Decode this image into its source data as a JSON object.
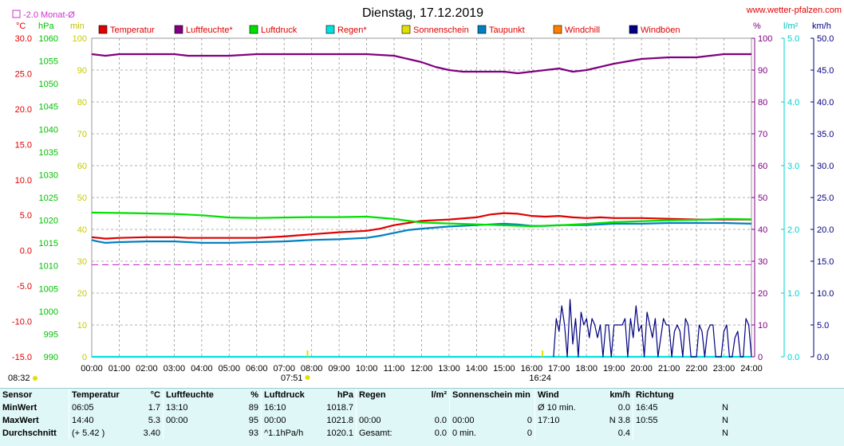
{
  "site": "www.wetter-pfalzen.com",
  "monthly_avg_label": "-2.0 Monat-Ø",
  "sunrise_label": "08:32",
  "sunset_marker_label": "16:24",
  "sun_morning_marker_label": "07:51",
  "colors": {
    "temperature": "#e00000",
    "humidity": "#800080",
    "pressure": "#00e000",
    "rain": "#00e0e0",
    "sunshine": "#e0e000",
    "dewpoint": "#0080c0",
    "windchill": "#ff8000",
    "gusts": "#000080",
    "month_avg": "#cc33cc"
  },
  "chart_data": {
    "type": "line",
    "title": "Dienstag, 17.12.2019",
    "x_ticks": [
      "00:00",
      "01:00",
      "02:00",
      "03:00",
      "04:00",
      "05:00",
      "06:00",
      "07:00",
      "08:00",
      "09:00",
      "10:00",
      "11:00",
      "12:00",
      "13:00",
      "14:00",
      "15:00",
      "16:00",
      "17:00",
      "18:00",
      "19:00",
      "20:00",
      "21:00",
      "22:00",
      "23:00",
      "24:00"
    ],
    "axes": {
      "temp": {
        "unit": "°C",
        "min": -15,
        "max": 30,
        "ticks": [
          "30.0",
          "25.0",
          "20.0",
          "15.0",
          "10.0",
          "5.0",
          "0.0",
          "-5.0",
          "-10.0",
          "-15.0"
        ]
      },
      "pressure": {
        "unit": "hPa",
        "min": 990,
        "max": 1060,
        "ticks": [
          "1060",
          "1055",
          "1050",
          "1045",
          "1040",
          "1035",
          "1030",
          "1025",
          "1020",
          "1015",
          "1010",
          "1005",
          "1000",
          "995",
          "990"
        ]
      },
      "minutes": {
        "unit": "min",
        "min": 0,
        "max": 100,
        "ticks": [
          "100",
          "90",
          "80",
          "70",
          "60",
          "50",
          "40",
          "30",
          "20",
          "10",
          "0"
        ]
      },
      "percent": {
        "unit": "%",
        "min": 0,
        "max": 100,
        "ticks": [
          "100",
          "90",
          "80",
          "70",
          "60",
          "50",
          "40",
          "30",
          "20",
          "10",
          "0"
        ]
      },
      "rain": {
        "unit": "l/m²",
        "min": 0,
        "max": 5,
        "ticks": [
          "5.0",
          "4.0",
          "3.0",
          "2.0",
          "1.0",
          "0.0"
        ]
      },
      "wind": {
        "unit": "km/h",
        "min": 0,
        "max": 50,
        "ticks": [
          "50.0",
          "45.0",
          "40.0",
          "35.0",
          "30.0",
          "25.0",
          "20.0",
          "15.0",
          "10.0",
          "5.0",
          "0.0"
        ]
      }
    },
    "legend": [
      {
        "name": "Temperatur",
        "color": "#e00000"
      },
      {
        "name": "Luftfeuchte*",
        "color": "#800080"
      },
      {
        "name": "Luftdruck",
        "color": "#00e000"
      },
      {
        "name": "Regen*",
        "color": "#00e0e0"
      },
      {
        "name": "Sonnenschein",
        "color": "#e0e000"
      },
      {
        "name": "Taupunkt",
        "color": "#0080c0"
      },
      {
        "name": "Windchill",
        "color": "#ff8000"
      },
      {
        "name": "Windböen",
        "color": "#000080"
      }
    ],
    "month_avg_temp": -2.0,
    "series": [
      {
        "name": "Temperatur",
        "axis": "temp",
        "color": "#e00000",
        "x": [
          0,
          0.5,
          1,
          2,
          3,
          3.5,
          4,
          5,
          6,
          7,
          8,
          9,
          10,
          10.5,
          11,
          11.5,
          12,
          13,
          14,
          14.5,
          15,
          15.5,
          16,
          16.5,
          17,
          17.5,
          18,
          18.5,
          19,
          20,
          21,
          22,
          23,
          24
        ],
        "y": [
          1.9,
          1.7,
          1.8,
          1.9,
          1.9,
          1.8,
          1.8,
          1.8,
          1.8,
          2.0,
          2.3,
          2.6,
          2.8,
          3.1,
          3.6,
          3.9,
          4.2,
          4.4,
          4.7,
          5.1,
          5.3,
          5.2,
          4.9,
          4.8,
          4.9,
          4.7,
          4.6,
          4.7,
          4.6,
          4.6,
          4.5,
          4.4,
          4.4,
          4.4
        ]
      },
      {
        "name": "Taupunkt",
        "axis": "temp",
        "color": "#0080c0",
        "x": [
          0,
          0.2,
          0.5,
          1,
          2,
          3,
          4,
          5,
          6,
          7,
          8,
          9,
          10,
          10.5,
          11,
          11.5,
          12,
          13,
          14,
          15,
          15.5,
          16,
          16.5,
          17,
          18,
          19,
          20,
          21,
          22,
          23,
          24
        ],
        "y": [
          1.5,
          1.3,
          1.1,
          1.2,
          1.3,
          1.3,
          1.1,
          1.1,
          1.2,
          1.3,
          1.5,
          1.6,
          1.8,
          2.1,
          2.5,
          2.9,
          3.1,
          3.4,
          3.6,
          3.8,
          3.7,
          3.5,
          3.5,
          3.6,
          3.6,
          3.8,
          3.8,
          3.9,
          3.9,
          3.9,
          3.8
        ]
      },
      {
        "name": "Luftdruck",
        "axis": "pressure",
        "color": "#00e000",
        "x": [
          0,
          1,
          2,
          3,
          4,
          5,
          6,
          7,
          8,
          9,
          10,
          11,
          12,
          13,
          14,
          15,
          16,
          17,
          18,
          19,
          20,
          21,
          22,
          23,
          24
        ],
        "y": [
          1021.7,
          1021.6,
          1021.5,
          1021.4,
          1021.1,
          1020.6,
          1020.5,
          1020.6,
          1020.7,
          1020.7,
          1020.8,
          1020.3,
          1019.5,
          1019.3,
          1019.1,
          1018.9,
          1018.7,
          1018.9,
          1019.2,
          1019.6,
          1019.8,
          1020.0,
          1020.1,
          1020.3,
          1020.2
        ]
      },
      {
        "name": "Luftfeuchte*",
        "axis": "percent",
        "color": "#800080",
        "x": [
          0,
          0.5,
          1,
          2,
          3,
          3.5,
          4,
          5,
          6,
          7,
          8,
          9,
          10,
          11,
          11.5,
          12,
          12.5,
          13,
          13.5,
          14,
          15,
          15.5,
          16,
          16.5,
          17,
          17.5,
          18,
          18.5,
          19,
          20,
          21,
          22,
          22.5,
          23,
          24
        ],
        "y": [
          95,
          94.5,
          95,
          95,
          95,
          94.5,
          94.5,
          94.5,
          95,
          95,
          95,
          95,
          95,
          94.5,
          93.5,
          92.5,
          91,
          90,
          89.5,
          89.5,
          89.5,
          89,
          89.5,
          90,
          90.5,
          89.5,
          90,
          91,
          92,
          93.5,
          94,
          94,
          94.5,
          95,
          95
        ]
      },
      {
        "name": "Regen*",
        "axis": "rain",
        "color": "#00e0e0",
        "x": [
          0,
          24
        ],
        "y": [
          0,
          0
        ]
      },
      {
        "name": "Windböen",
        "axis": "wind",
        "color": "#000080",
        "x": [
          16.8,
          16.9,
          17,
          17.1,
          17.2,
          17.3,
          17.4,
          17.5,
          17.6,
          17.7,
          17.8,
          17.9,
          18,
          18.1,
          18.2,
          18.3,
          18.4,
          18.5,
          18.6,
          18.7,
          18.8,
          18.9,
          19,
          19.1,
          19.2,
          19.3,
          19.4,
          19.5,
          19.6,
          19.7,
          19.8,
          19.9,
          20,
          20.1,
          20.2,
          20.3,
          20.4,
          20.5,
          20.6,
          20.7,
          20.8,
          20.9,
          21,
          21.1,
          21.2,
          21.3,
          21.4,
          21.5,
          21.6,
          21.7,
          21.8,
          21.9,
          22,
          22.1,
          22.2,
          22.3,
          22.4,
          22.5,
          22.6,
          22.7,
          22.8,
          22.9,
          23,
          23.1,
          23.2,
          23.3,
          23.4,
          23.5,
          23.6,
          23.7,
          23.8,
          23.9,
          24
        ],
        "y": [
          0,
          6,
          4,
          8,
          5,
          0,
          9,
          2,
          6,
          0,
          7,
          5,
          6,
          3,
          6,
          5,
          3,
          5,
          0,
          5,
          5,
          0,
          5,
          5,
          5,
          5,
          6,
          0,
          6,
          3,
          8,
          4,
          5,
          0,
          7,
          5,
          3,
          6,
          0,
          3,
          6,
          5,
          5,
          0,
          4,
          5,
          4,
          0,
          6,
          5,
          0,
          0,
          0,
          5,
          4,
          0,
          4,
          5,
          5,
          0,
          0,
          0,
          4,
          5,
          0,
          0,
          3,
          4,
          0,
          0,
          6,
          5,
          0
        ]
      }
    ],
    "sunrise_x": 7.85,
    "sunset_x": 16.4
  },
  "stats": {
    "headers": {
      "sensor": "Sensor",
      "temp": "Temperatur",
      "temp_unit": "°C",
      "hum": "Luftfeuchte",
      "hum_unit": "%",
      "press": "Luftdruck",
      "press_unit": "hPa",
      "rain": "Regen",
      "rain_unit": "l/m²",
      "sun": "Sonnenschein min",
      "wind": "Wind",
      "wind_unit": "km/h",
      "dir": "Richtung"
    },
    "rows": [
      {
        "label": "MinWert",
        "t_time": "06:05",
        "t_val": "1.7",
        "h_time": "13:10",
        "h_val": "89",
        "p_time": "16:10",
        "p_val": "1018.7",
        "r_time": "",
        "r_val": "",
        "s_time": "",
        "s_val": "",
        "w_time": "Ø 10 min.",
        "w_val": "0.0",
        "d_time": "16:45",
        "d_val": "N"
      },
      {
        "label": "MaxWert",
        "t_time": "14:40",
        "t_val": "5.3",
        "h_time": "00:00",
        "h_val": "95",
        "p_time": "00:00",
        "p_val": "1021.8",
        "r_time": "00:00",
        "r_val": "0.0",
        "s_time": "00:00",
        "s_val": "0",
        "w_time": "17:10",
        "w_val": "N 3.8",
        "d_time": "10:55",
        "d_val": "N"
      },
      {
        "label": "Durchschnitt",
        "t_time": "(+ 5.42 )",
        "t_val": "3.40",
        "h_time": "",
        "h_val": "93",
        "p_time": "^1.1hPa/h",
        "p_val": "1020.1",
        "r_time": "Gesamt:",
        "r_val": "0.0",
        "s_time": "0 min.",
        "s_val": "0",
        "w_time": "",
        "w_val": "0.4",
        "d_time": "",
        "d_val": "N"
      }
    ]
  }
}
